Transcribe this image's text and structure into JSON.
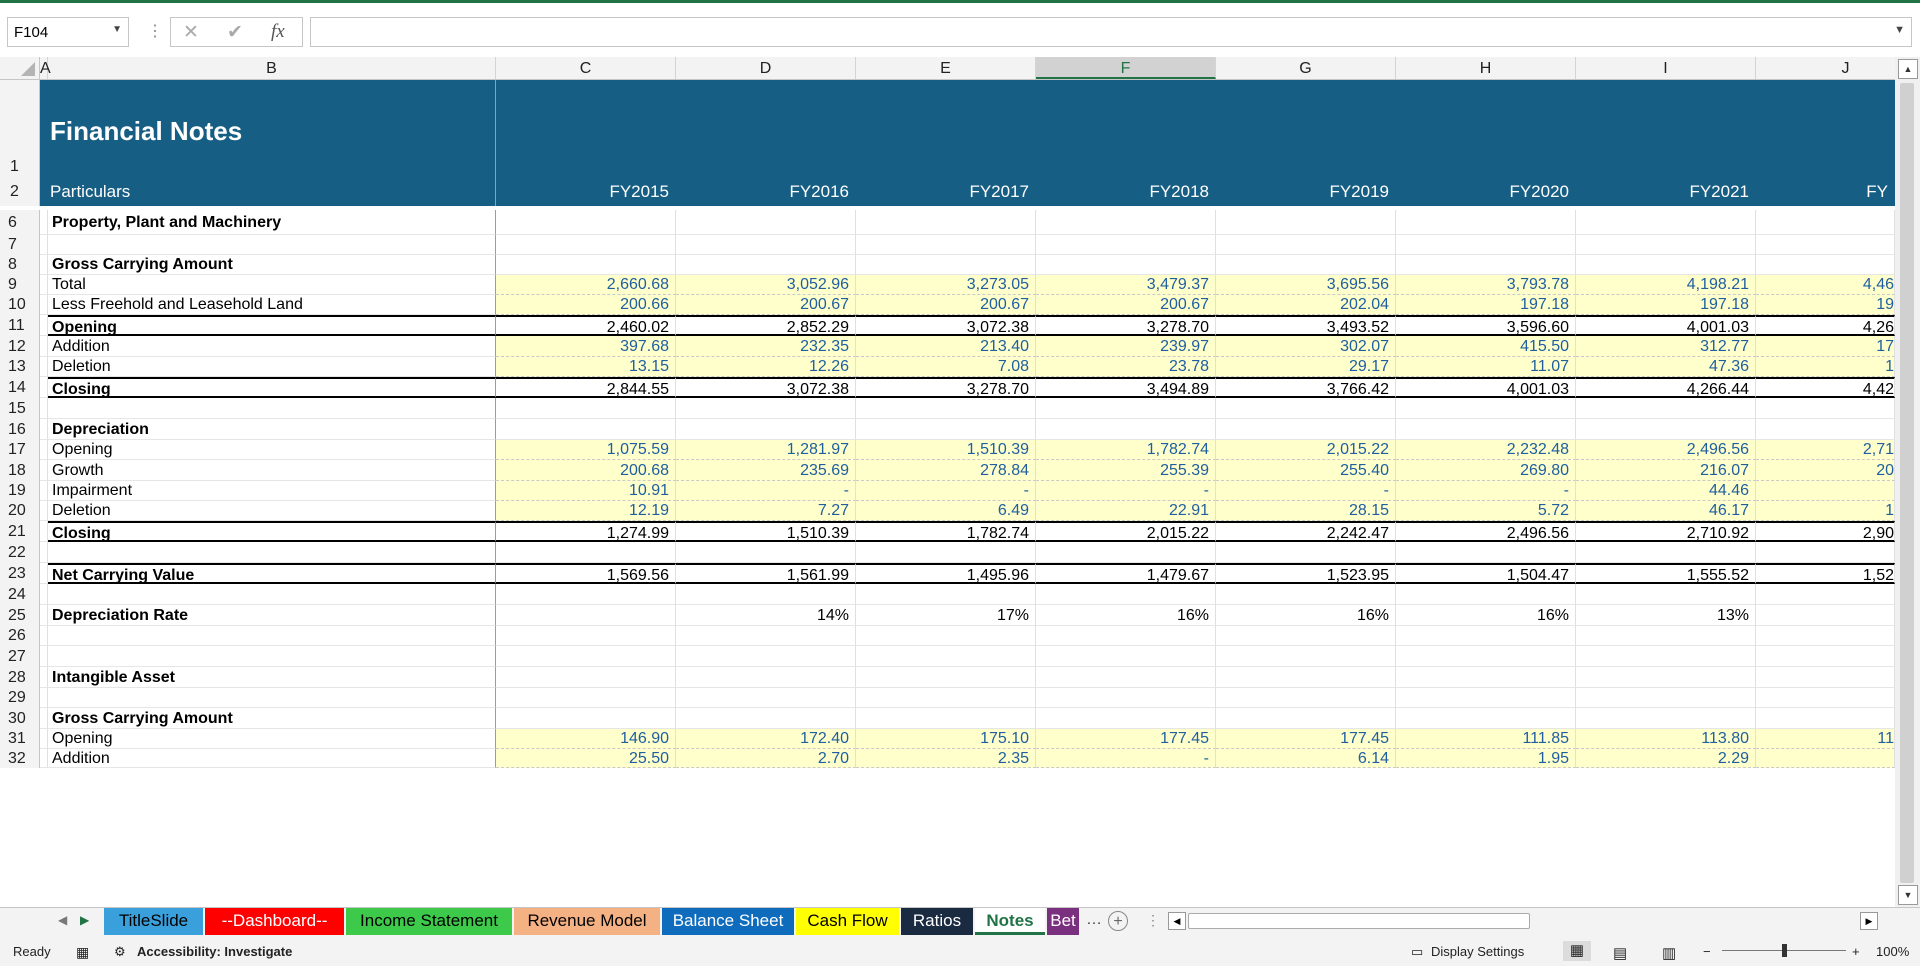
{
  "formula_bar": {
    "cell_ref": "F104",
    "cancel_icon": "✕",
    "enter_icon": "✔",
    "fx_label": "fx",
    "formula": ""
  },
  "columns": {
    "A": "A",
    "B": "B",
    "C": "C",
    "D": "D",
    "E": "E",
    "F": "F",
    "G": "G",
    "H": "H",
    "I": "I",
    "J": "J"
  },
  "selected_column": "F",
  "sheet": {
    "title": "Financial Notes",
    "particulars": "Particulars",
    "years": [
      "FY2015",
      "FY2016",
      "FY2017",
      "FY2018",
      "FY2019",
      "FY2020",
      "FY2021",
      "FY"
    ],
    "rows": [
      {
        "n": "6",
        "label": "Property, Plant and Machinery",
        "bold": true,
        "vals": [
          "",
          "",
          "",
          "",
          "",
          "",
          "",
          ""
        ]
      },
      {
        "n": "7",
        "label": "",
        "vals": [
          "",
          "",
          "",
          "",
          "",
          "",
          "",
          ""
        ]
      },
      {
        "n": "8",
        "label": "Gross Carrying Amount",
        "bold": true,
        "vals": [
          "",
          "",
          "",
          "",
          "",
          "",
          "",
          ""
        ]
      },
      {
        "n": "9",
        "label": "Total",
        "input": true,
        "vals": [
          "2,660.68",
          "3,052.96",
          "3,273.05",
          "3,479.37",
          "3,695.56",
          "3,793.78",
          "4,198.21",
          "4,46"
        ]
      },
      {
        "n": "10",
        "label": "Less Freehold and Leasehold Land",
        "input": true,
        "vals": [
          "200.66",
          "200.67",
          "200.67",
          "200.67",
          "202.04",
          "197.18",
          "197.18",
          "19"
        ]
      },
      {
        "n": "11",
        "label": "Opening",
        "bold": true,
        "tline": true,
        "bline": true,
        "vals": [
          "2,460.02",
          "2,852.29",
          "3,072.38",
          "3,278.70",
          "3,493.52",
          "3,596.60",
          "4,001.03",
          "4,26"
        ]
      },
      {
        "n": "12",
        "label": "Addition",
        "input": true,
        "vals": [
          "397.68",
          "232.35",
          "213.40",
          "239.97",
          "302.07",
          "415.50",
          "312.77",
          "17"
        ]
      },
      {
        "n": "13",
        "label": "Deletion",
        "input": true,
        "vals": [
          "13.15",
          "12.26",
          "7.08",
          "23.78",
          "29.17",
          "11.07",
          "47.36",
          "1"
        ]
      },
      {
        "n": "14",
        "label": "Closing",
        "bold": true,
        "tline": true,
        "bline": true,
        "vals": [
          "2,844.55",
          "3,072.38",
          "3,278.70",
          "3,494.89",
          "3,766.42",
          "4,001.03",
          "4,266.44",
          "4,42"
        ]
      },
      {
        "n": "15",
        "label": "",
        "vals": [
          "",
          "",
          "",
          "",
          "",
          "",
          "",
          ""
        ]
      },
      {
        "n": "16",
        "label": "Depreciation",
        "bold": true,
        "vals": [
          "",
          "",
          "",
          "",
          "",
          "",
          "",
          ""
        ]
      },
      {
        "n": "17",
        "label": "Opening",
        "input": true,
        "vals": [
          "1,075.59",
          "1,281.97",
          "1,510.39",
          "1,782.74",
          "2,015.22",
          "2,232.48",
          "2,496.56",
          "2,71"
        ]
      },
      {
        "n": "18",
        "label": "Growth",
        "input": true,
        "vals": [
          "200.68",
          "235.69",
          "278.84",
          "255.39",
          "255.40",
          "269.80",
          "216.07",
          "20"
        ]
      },
      {
        "n": "19",
        "label": "Impairment",
        "input": true,
        "vals": [
          "10.91",
          "-",
          "-",
          "-",
          "-",
          "-",
          "44.46",
          ""
        ]
      },
      {
        "n": "20",
        "label": "Deletion",
        "input": true,
        "vals": [
          "12.19",
          "7.27",
          "6.49",
          "22.91",
          "28.15",
          "5.72",
          "46.17",
          "1"
        ]
      },
      {
        "n": "21",
        "label": "Closing",
        "bold": true,
        "tline": true,
        "bline": true,
        "vals": [
          "1,274.99",
          "1,510.39",
          "1,782.74",
          "2,015.22",
          "2,242.47",
          "2,496.56",
          "2,710.92",
          "2,90"
        ]
      },
      {
        "n": "22",
        "label": "",
        "vals": [
          "",
          "",
          "",
          "",
          "",
          "",
          "",
          ""
        ]
      },
      {
        "n": "23",
        "label": "Net Carrying Value",
        "bold": true,
        "tline": true,
        "bline": true,
        "vals": [
          "1,569.56",
          "1,561.99",
          "1,495.96",
          "1,479.67",
          "1,523.95",
          "1,504.47",
          "1,555.52",
          "1,52"
        ]
      },
      {
        "n": "24",
        "label": "",
        "vals": [
          "",
          "",
          "",
          "",
          "",
          "",
          "",
          ""
        ]
      },
      {
        "n": "25",
        "label": "Depreciation Rate",
        "bold": true,
        "vals": [
          "",
          "14%",
          "17%",
          "16%",
          "16%",
          "16%",
          "13%",
          ""
        ]
      },
      {
        "n": "26",
        "label": "",
        "vals": [
          "",
          "",
          "",
          "",
          "",
          "",
          "",
          ""
        ]
      },
      {
        "n": "27",
        "label": "",
        "vals": [
          "",
          "",
          "",
          "",
          "",
          "",
          "",
          ""
        ]
      },
      {
        "n": "28",
        "label": "Intangible Asset",
        "bold": true,
        "vals": [
          "",
          "",
          "",
          "",
          "",
          "",
          "",
          ""
        ]
      },
      {
        "n": "29",
        "label": "",
        "vals": [
          "",
          "",
          "",
          "",
          "",
          "",
          "",
          ""
        ]
      },
      {
        "n": "30",
        "label": "Gross Carrying Amount",
        "bold": true,
        "vals": [
          "",
          "",
          "",
          "",
          "",
          "",
          "",
          ""
        ]
      },
      {
        "n": "31",
        "label": "Opening",
        "input": true,
        "vals": [
          "146.90",
          "172.40",
          "175.10",
          "177.45",
          "177.45",
          "111.85",
          "113.80",
          "11"
        ]
      },
      {
        "n": "32",
        "label": "Addition",
        "input": true,
        "vals": [
          "25.50",
          "2.70",
          "2.35",
          "-",
          "6.14",
          "1.95",
          "2.29",
          ""
        ]
      }
    ]
  },
  "tabs": [
    {
      "label": "TitleSlide",
      "bg": "#3aa0dc",
      "color": "#000"
    },
    {
      "label": "--Dashboard--",
      "bg": "#ff0000",
      "color": "#fff"
    },
    {
      "label": "Income Statement",
      "bg": "#3dc94a",
      "color": "#000"
    },
    {
      "label": "Revenue Model",
      "bg": "#f4b183",
      "color": "#000"
    },
    {
      "label": "Balance Sheet",
      "bg": "#0f6cbd",
      "color": "#fff"
    },
    {
      "label": "Cash Flow",
      "bg": "#ffff00",
      "color": "#000"
    },
    {
      "label": "Ratios",
      "bg": "#1a2a40",
      "color": "#fff"
    },
    {
      "label": "Notes",
      "bg": "#ffffff",
      "color": "#217346",
      "active": true
    },
    {
      "label": "Bet",
      "bg": "#7b2f7f",
      "color": "#fff"
    }
  ],
  "status": {
    "ready": "Ready",
    "accessibility": "Accessibility: Investigate",
    "display_settings": "Display Settings",
    "zoom": "100%"
  }
}
